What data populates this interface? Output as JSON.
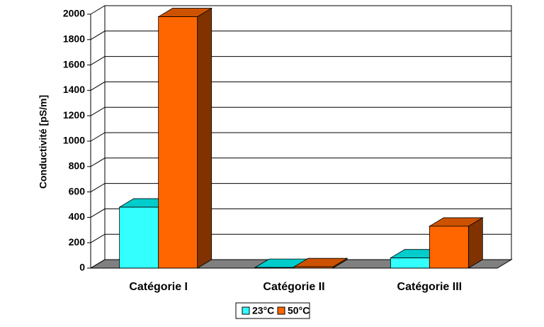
{
  "chart_data": {
    "type": "bar3d",
    "y_label": "Conductivité [pS/m]",
    "categories": [
      "Catégorie I",
      "Catégorie II",
      "Catégorie III"
    ],
    "series": [
      {
        "name": "23°C",
        "color": "#33ffff",
        "top_color": "#00cccc",
        "side_color": "#009999",
        "values": [
          480,
          5,
          80
        ]
      },
      {
        "name": "50°C",
        "color": "#ff6600",
        "top_color": "#cc5200",
        "side_color": "#803300",
        "values": [
          1980,
          10,
          330
        ]
      }
    ],
    "ylim": [
      0,
      2000
    ],
    "yticks": [
      0,
      200,
      400,
      600,
      800,
      1000,
      1200,
      1400,
      1600,
      1800,
      2000
    ],
    "grid": true,
    "legend": "bottom"
  }
}
